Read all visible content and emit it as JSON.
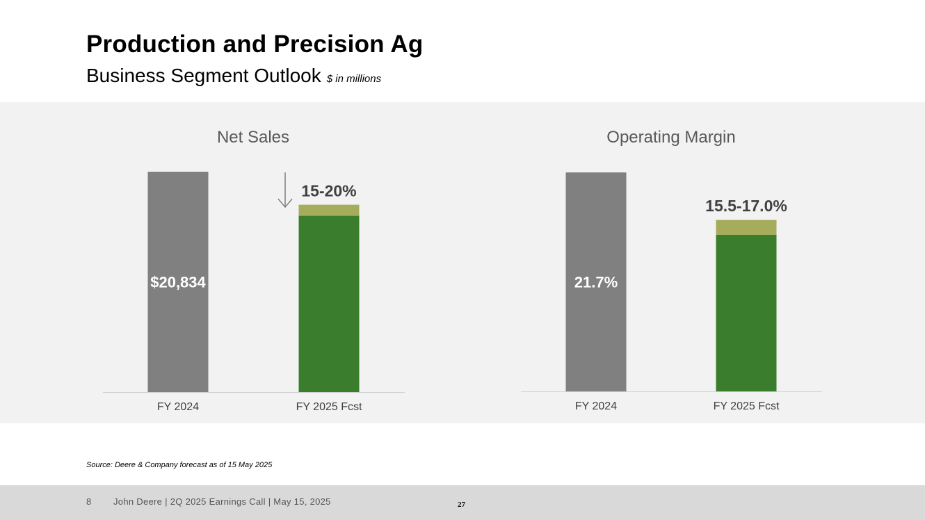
{
  "header": {
    "title": "Production and Precision Ag",
    "subtitle": "Business Segment Outlook",
    "units": "$ in millions"
  },
  "colors": {
    "actual": "#808080",
    "forecast_low": "#3a7d2c",
    "forecast_range": "#a5ac5c",
    "panel_bg": "#f2f2f2",
    "axis": "#d0d0d0"
  },
  "chart_data": [
    {
      "type": "bar",
      "title": "Net Sales",
      "categories": [
        "FY 2024",
        "FY 2025 Fcst"
      ],
      "series": [
        {
          "values": [
            20834,
            null
          ]
        },
        {
          "values": [
            null,
            16667
          ]
        },
        {
          "values": [
            null,
            17709
          ]
        }
      ],
      "data_labels": [
        "$20,834",
        "15-20%"
      ],
      "annotation": "down-arrow",
      "ylim": [
        0,
        20834
      ],
      "grid": false,
      "legend": "none"
    },
    {
      "type": "bar",
      "title": "Operating Margin",
      "categories": [
        "FY 2024",
        "FY 2025 Fcst"
      ],
      "series": [
        {
          "values": [
            21.7,
            null
          ]
        },
        {
          "values": [
            null,
            15.5
          ]
        },
        {
          "values": [
            null,
            17.0
          ]
        }
      ],
      "data_labels": [
        "21.7%",
        "15.5-17.0%"
      ],
      "ylim": [
        0,
        21.7
      ],
      "grid": false,
      "legend": "none"
    }
  ],
  "source": "Source: Deere & Company forecast as of 15 May 2025",
  "footer": {
    "page": "8",
    "event": "John Deere | 2Q 2025 Earnings Call | May 15, 2025",
    "number": "27"
  }
}
